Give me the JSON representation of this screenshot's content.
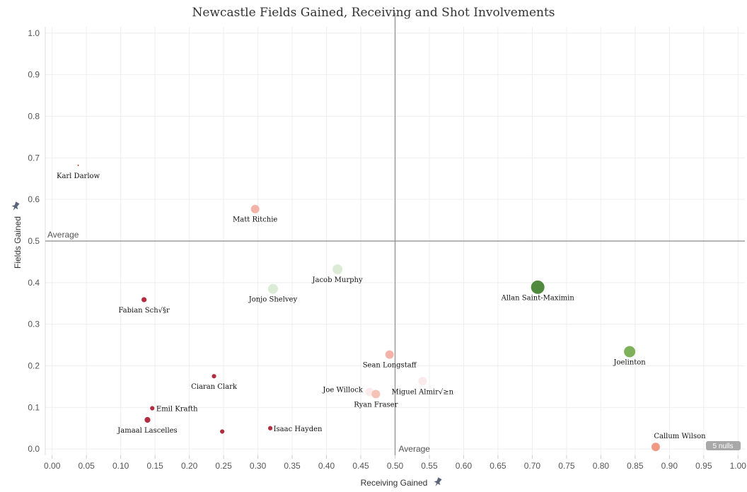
{
  "chart_data": {
    "type": "scatter",
    "title": "Newcastle Fields Gained, Receiving and Shot Involvements",
    "xlabel": "Receiving Gained",
    "ylabel": "Fields Gained",
    "xlim": [
      -0.01,
      1.01
    ],
    "ylim": [
      -0.015,
      1.015
    ],
    "x_ticks": [
      "0.00",
      "0.05",
      "0.10",
      "0.15",
      "0.20",
      "0.25",
      "0.30",
      "0.35",
      "0.40",
      "0.45",
      "0.50",
      "0.55",
      "0.60",
      "0.65",
      "0.70",
      "0.75",
      "0.80",
      "0.85",
      "0.90",
      "0.95",
      "1.00"
    ],
    "y_ticks": [
      "0.0",
      "0.1",
      "0.2",
      "0.3",
      "0.4",
      "0.5",
      "0.6",
      "0.7",
      "0.8",
      "0.9",
      "1.0"
    ],
    "reference_lines": {
      "x_average": 0.5,
      "y_average": 0.5,
      "x_average_label": "Average",
      "y_average_label": "Average"
    },
    "nulls_badge": "5 nulls",
    "points": [
      {
        "name": "Karl Darlow",
        "x": 0.038,
        "y": 0.682,
        "size": 1,
        "color": "#c0392b"
      },
      {
        "name": "Matt Ritchie",
        "x": 0.296,
        "y": 0.577,
        "size": 6,
        "color": "#f4b3a8"
      },
      {
        "name": "Jacob Murphy",
        "x": 0.416,
        "y": 0.432,
        "size": 7,
        "color": "#dcebd5"
      },
      {
        "name": "Jonjo Shelvey",
        "x": 0.322,
        "y": 0.385,
        "size": 7,
        "color": "#dcebd5"
      },
      {
        "name": "Fabian Sch√§r",
        "x": 0.134,
        "y": 0.359,
        "size": 4,
        "color": "#b22d3f"
      },
      {
        "name": "Allan Saint-Maximin",
        "x": 0.708,
        "y": 0.389,
        "size": 9.5,
        "color": "#4f8a3e"
      },
      {
        "name": "Joelinton",
        "x": 0.842,
        "y": 0.234,
        "size": 8,
        "color": "#7fb05a"
      },
      {
        "name": "Sean Longstaff",
        "x": 0.492,
        "y": 0.227,
        "size": 6,
        "color": "#f4b3a8"
      },
      {
        "name": "Ciaran Clark",
        "x": 0.236,
        "y": 0.175,
        "size": 3.5,
        "color": "#b22d3f"
      },
      {
        "name": "Miguel Almir√≥n",
        "x": 0.54,
        "y": 0.163,
        "size": 6,
        "color": "#fbeaea"
      },
      {
        "name": "Joe Willock",
        "x": 0.463,
        "y": 0.137,
        "size": 6,
        "color": "#fbeaea"
      },
      {
        "name": "Ryan Fraser",
        "x": 0.472,
        "y": 0.132,
        "size": 6,
        "color": "#f6c1b6"
      },
      {
        "name": "Emil Krafth",
        "x": 0.146,
        "y": 0.098,
        "size": 3.5,
        "color": "#b22d3f"
      },
      {
        "name": "Jamaal Lascelles",
        "x": 0.139,
        "y": 0.07,
        "size": 4.5,
        "color": "#b22d3f"
      },
      {
        "name": "Isaac Hayden",
        "x": 0.318,
        "y": 0.05,
        "size": 3.5,
        "color": "#b22d3f"
      },
      {
        "name": "",
        "x": 0.248,
        "y": 0.042,
        "size": 3.5,
        "color": "#b22d3f"
      },
      {
        "name": "Callum Wilson",
        "x": 0.88,
        "y": 0.005,
        "size": 6,
        "color": "#f09a86"
      }
    ]
  },
  "icons": {
    "x_pin": "pin-icon",
    "y_pin": "pin-icon"
  }
}
